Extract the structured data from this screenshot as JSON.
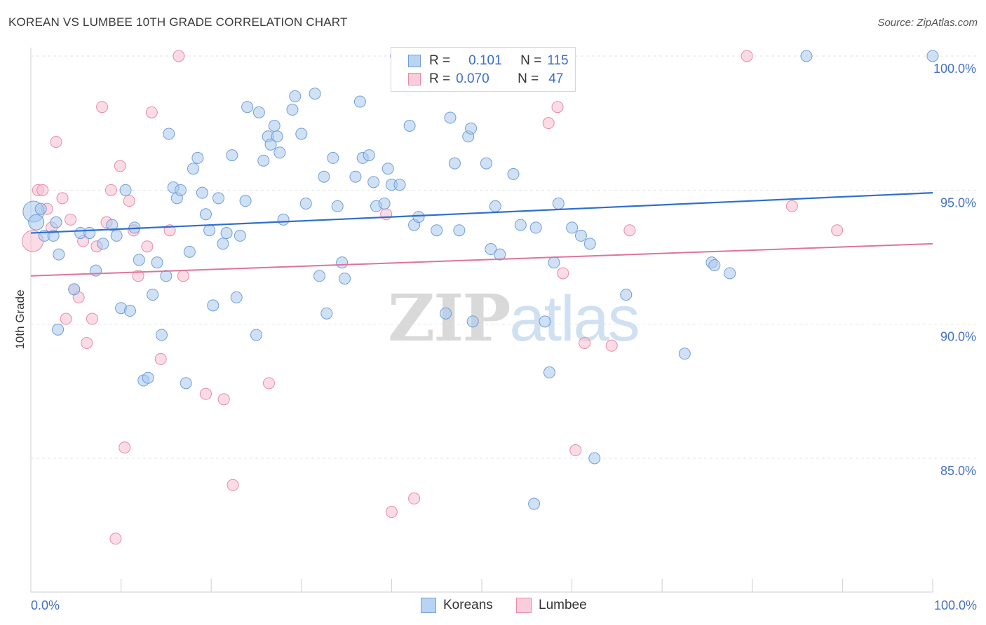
{
  "title": "KOREAN VS LUMBEE 10TH GRADE CORRELATION CHART",
  "source": "Source: ZipAtlas.com",
  "watermark": {
    "zip": "ZIP",
    "atlas": "atlas"
  },
  "legend": {
    "r_label": "R =",
    "n_label": "N =",
    "rows": [
      {
        "series": "Koreans",
        "r": "0.101",
        "n": "115"
      },
      {
        "series": "Lumbee",
        "r": "0.070",
        "n": "47"
      }
    ]
  },
  "colors": {
    "koreans_fill": "#a9c8ee",
    "koreans_stroke": "#6f9fd8",
    "koreans_line": "#2e6fce",
    "lumbee_fill": "#f7bfd0",
    "lumbee_stroke": "#e88aa8",
    "lumbee_line": "#e0739a",
    "grid": "#e3e3e3",
    "axis_label": "#4472c4"
  },
  "chart_data": {
    "type": "scatter",
    "title": "KOREAN VS LUMBEE 10TH GRADE CORRELATION CHART",
    "xlabel": "",
    "ylabel": "10th Grade",
    "xlim": [
      0,
      100
    ],
    "ylim": [
      80.4,
      101.5
    ],
    "x_tick_labels": [
      "0.0%",
      "100.0%"
    ],
    "y_ticks": [
      100,
      95,
      90,
      85
    ],
    "y_tick_labels": [
      "100.0%",
      "95.0%",
      "90.0%",
      "85.0%"
    ],
    "grid": true,
    "legend_position": "bottom",
    "series": [
      {
        "name": "Koreans",
        "r": 0.101,
        "n": 115,
        "trend": {
          "x": [
            0,
            100
          ],
          "y": [
            93.4,
            94.9
          ]
        },
        "points": [
          [
            0.3,
            94.2,
            3
          ],
          [
            0.6,
            93.8,
            2
          ],
          [
            1.1,
            94.3,
            1
          ],
          [
            1.5,
            93.3,
            1
          ],
          [
            2.5,
            93.3,
            1
          ],
          [
            2.8,
            93.8,
            1
          ],
          [
            3.0,
            89.8,
            1
          ],
          [
            3.1,
            92.6,
            1
          ],
          [
            4.8,
            91.3,
            1
          ],
          [
            5.5,
            93.4,
            1
          ],
          [
            6.5,
            93.4,
            1
          ],
          [
            7.2,
            92.0,
            1
          ],
          [
            8.0,
            93.0,
            1
          ],
          [
            9.0,
            93.7,
            1
          ],
          [
            9.5,
            93.3,
            1
          ],
          [
            10.0,
            90.6,
            1
          ],
          [
            10.5,
            95.0,
            1
          ],
          [
            11.0,
            90.5,
            1
          ],
          [
            11.5,
            93.6,
            1
          ],
          [
            12.0,
            92.4,
            1
          ],
          [
            12.5,
            87.9,
            1
          ],
          [
            13.0,
            88.0,
            1
          ],
          [
            13.5,
            91.1,
            1
          ],
          [
            14.0,
            92.3,
            1
          ],
          [
            14.5,
            89.6,
            1
          ],
          [
            15.0,
            91.8,
            1
          ],
          [
            15.3,
            97.1,
            1
          ],
          [
            15.8,
            95.1,
            1
          ],
          [
            16.2,
            94.7,
            1
          ],
          [
            16.6,
            95.0,
            1
          ],
          [
            17.2,
            87.8,
            1
          ],
          [
            17.6,
            92.7,
            1
          ],
          [
            18.0,
            95.8,
            1
          ],
          [
            18.5,
            96.2,
            1
          ],
          [
            19.0,
            94.9,
            1
          ],
          [
            19.4,
            94.1,
            1
          ],
          [
            19.8,
            93.5,
            1
          ],
          [
            20.2,
            90.7,
            1
          ],
          [
            20.8,
            94.7,
            1
          ],
          [
            21.3,
            93.0,
            1
          ],
          [
            21.7,
            93.4,
            1
          ],
          [
            22.3,
            96.3,
            1
          ],
          [
            22.8,
            91.0,
            1
          ],
          [
            23.2,
            93.3,
            1
          ],
          [
            23.8,
            94.6,
            1
          ],
          [
            24.0,
            98.1,
            1
          ],
          [
            25.0,
            89.6,
            1
          ],
          [
            25.3,
            97.9,
            1
          ],
          [
            25.8,
            96.1,
            1
          ],
          [
            26.3,
            97.0,
            1
          ],
          [
            26.6,
            96.7,
            1
          ],
          [
            27.0,
            97.4,
            1
          ],
          [
            27.3,
            97.0,
            1
          ],
          [
            27.6,
            96.4,
            1
          ],
          [
            28.0,
            93.9,
            1
          ],
          [
            29.0,
            98.0,
            1
          ],
          [
            29.3,
            98.5,
            1
          ],
          [
            30.0,
            97.1,
            1
          ],
          [
            30.5,
            94.5,
            1
          ],
          [
            31.5,
            98.6,
            1
          ],
          [
            32.0,
            91.8,
            1
          ],
          [
            32.5,
            95.5,
            1
          ],
          [
            32.8,
            90.4,
            1
          ],
          [
            33.5,
            96.2,
            1
          ],
          [
            34.0,
            94.4,
            1
          ],
          [
            34.5,
            92.3,
            1
          ],
          [
            34.8,
            91.7,
            1
          ],
          [
            36.0,
            95.5,
            1
          ],
          [
            36.5,
            98.3,
            1
          ],
          [
            36.8,
            96.2,
            1
          ],
          [
            37.5,
            96.3,
            1
          ],
          [
            38.0,
            95.3,
            1
          ],
          [
            38.3,
            94.4,
            1
          ],
          [
            39.2,
            94.5,
            1
          ],
          [
            39.6,
            95.8,
            1
          ],
          [
            40.0,
            95.2,
            1
          ],
          [
            40.5,
            100.0,
            1
          ],
          [
            40.9,
            95.2,
            1
          ],
          [
            42.0,
            97.4,
            1
          ],
          [
            42.5,
            93.7,
            1
          ],
          [
            43.0,
            94.0,
            1
          ],
          [
            45.0,
            93.5,
            1
          ],
          [
            46.0,
            90.4,
            1
          ],
          [
            46.5,
            97.7,
            1
          ],
          [
            47.0,
            96.0,
            1
          ],
          [
            47.5,
            93.5,
            1
          ],
          [
            48.5,
            97.0,
            1
          ],
          [
            48.8,
            97.3,
            1
          ],
          [
            49.0,
            90.1,
            1
          ],
          [
            50.5,
            96.0,
            1
          ],
          [
            51.0,
            92.8,
            1
          ],
          [
            51.5,
            94.4,
            1
          ],
          [
            52.0,
            92.6,
            1
          ],
          [
            53.5,
            95.6,
            1
          ],
          [
            54.0,
            99.1,
            1
          ],
          [
            54.3,
            93.7,
            1
          ],
          [
            55.8,
            83.3,
            1
          ],
          [
            56.0,
            93.6,
            1
          ],
          [
            57.0,
            90.1,
            1
          ],
          [
            57.5,
            88.2,
            1
          ],
          [
            58.0,
            92.3,
            1
          ],
          [
            58.5,
            94.5,
            1
          ],
          [
            60.0,
            93.6,
            1
          ],
          [
            61.0,
            93.3,
            1
          ],
          [
            62.0,
            93.0,
            1
          ],
          [
            62.5,
            85.0,
            1
          ],
          [
            66.0,
            91.1,
            1
          ],
          [
            72.5,
            88.9,
            1
          ],
          [
            75.5,
            92.3,
            1
          ],
          [
            75.8,
            92.2,
            1
          ],
          [
            77.5,
            91.9,
            1
          ],
          [
            86.0,
            100.0,
            1
          ],
          [
            100.0,
            100.0,
            1
          ],
          [
            70.0,
            93.0,
            0
          ],
          [
            26.5,
            97.1,
            0
          ]
        ]
      },
      {
        "name": "Lumbee",
        "r": 0.07,
        "n": 47,
        "trend": {
          "x": [
            0,
            100
          ],
          "y": [
            91.8,
            93.0
          ]
        },
        "points": [
          [
            0.2,
            93.1,
            3
          ],
          [
            0.8,
            95.0,
            1
          ],
          [
            1.3,
            95.0,
            1
          ],
          [
            1.8,
            94.3,
            1
          ],
          [
            2.3,
            93.6,
            1
          ],
          [
            2.8,
            96.8,
            1
          ],
          [
            3.5,
            94.7,
            1
          ],
          [
            3.9,
            90.2,
            1
          ],
          [
            4.4,
            93.9,
            1
          ],
          [
            4.8,
            91.3,
            1
          ],
          [
            5.3,
            91.0,
            1
          ],
          [
            5.8,
            93.1,
            1
          ],
          [
            6.2,
            89.3,
            1
          ],
          [
            6.8,
            90.2,
            1
          ],
          [
            7.3,
            92.9,
            1
          ],
          [
            7.9,
            98.1,
            1
          ],
          [
            8.4,
            93.8,
            1
          ],
          [
            8.9,
            95.0,
            1
          ],
          [
            9.4,
            82.0,
            1
          ],
          [
            9.9,
            95.9,
            1
          ],
          [
            10.4,
            85.4,
            1
          ],
          [
            10.9,
            94.6,
            1
          ],
          [
            11.4,
            93.5,
            1
          ],
          [
            11.9,
            91.8,
            1
          ],
          [
            12.9,
            92.9,
            1
          ],
          [
            13.4,
            97.9,
            1
          ],
          [
            14.4,
            88.7,
            1
          ],
          [
            15.4,
            93.5,
            1
          ],
          [
            16.4,
            100.0,
            1
          ],
          [
            16.9,
            91.8,
            1
          ],
          [
            19.4,
            87.4,
            1
          ],
          [
            21.4,
            87.2,
            1
          ],
          [
            22.4,
            84.0,
            1
          ],
          [
            26.4,
            87.8,
            1
          ],
          [
            40.0,
            83.0,
            1
          ],
          [
            42.5,
            83.5,
            1
          ],
          [
            57.4,
            97.5,
            1
          ],
          [
            58.4,
            98.1,
            1
          ],
          [
            59.0,
            91.9,
            1
          ],
          [
            60.4,
            85.3,
            1
          ],
          [
            61.4,
            89.3,
            1
          ],
          [
            64.4,
            89.2,
            1
          ],
          [
            66.4,
            93.5,
            1
          ],
          [
            79.4,
            100.0,
            1
          ],
          [
            84.4,
            94.4,
            1
          ],
          [
            89.4,
            93.5,
            1
          ],
          [
            39.4,
            94.1,
            1
          ]
        ]
      }
    ]
  }
}
